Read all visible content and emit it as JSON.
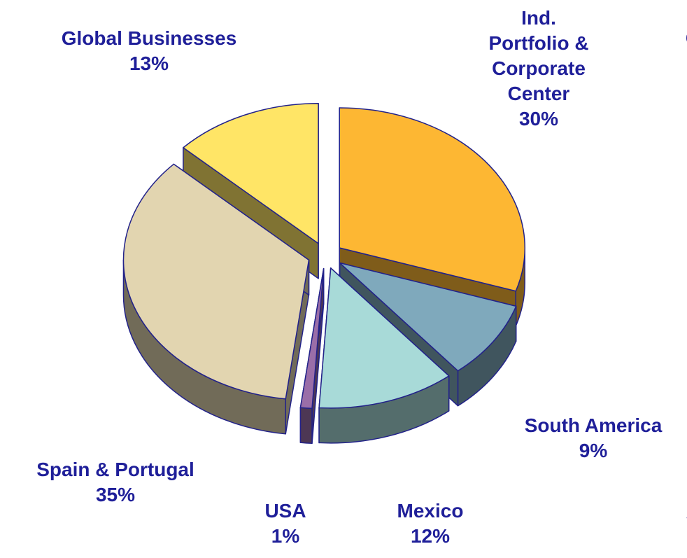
{
  "chart_data": {
    "type": "pie",
    "categories": [
      "Ind.\nPortfolio &\nCorporate\nCenter",
      "South America",
      "Mexico",
      "USA",
      "Spain & Portugal",
      "Global Businesses"
    ],
    "values": [
      30,
      9,
      12,
      1,
      35,
      13
    ],
    "value_labels": [
      "30%",
      "9%",
      "12%",
      "1%",
      "35%",
      "13%"
    ],
    "colors": [
      "#FDB733",
      "#7FA9BC",
      "#A8DAD8",
      "#9A6EA8",
      "#E2D5B0",
      "#FFE566"
    ],
    "annotations": [
      "C",
      "S"
    ]
  }
}
